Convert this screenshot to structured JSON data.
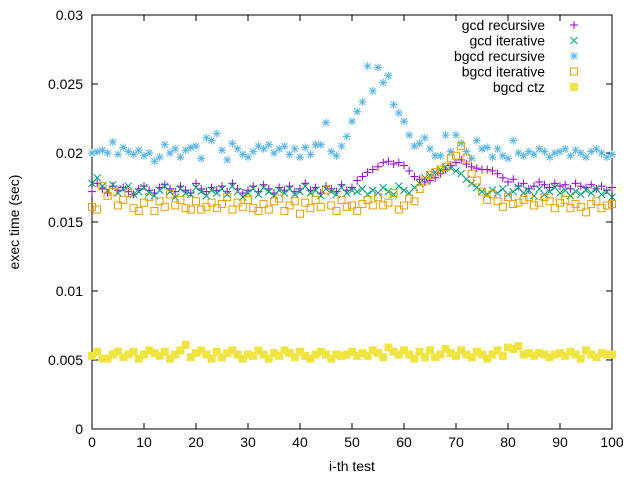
{
  "chart_data": {
    "type": "scatter",
    "title": "",
    "xlabel": "i-th test",
    "ylabel": "exec time (sec)",
    "xlim": [
      0,
      100
    ],
    "ylim": [
      0,
      0.03
    ],
    "x_ticks": [
      0,
      10,
      20,
      30,
      40,
      50,
      60,
      70,
      80,
      90,
      100
    ],
    "x_tick_labels": [
      "0",
      "10",
      "20",
      "30",
      "40",
      "50",
      "60",
      "70",
      "80",
      "90",
      "100"
    ],
    "y_ticks": [
      0,
      0.005,
      0.01,
      0.015,
      0.02,
      0.025,
      0.03
    ],
    "y_tick_labels": [
      "0",
      "0.005",
      "0.01",
      "0.015",
      "0.02",
      "0.025",
      "0.03"
    ],
    "legend_position": "top-right",
    "x": [
      0,
      1,
      2,
      3,
      4,
      5,
      6,
      7,
      8,
      9,
      10,
      11,
      12,
      13,
      14,
      15,
      16,
      17,
      18,
      19,
      20,
      21,
      22,
      23,
      24,
      25,
      26,
      27,
      28,
      29,
      30,
      31,
      32,
      33,
      34,
      35,
      36,
      37,
      38,
      39,
      40,
      41,
      42,
      43,
      44,
      45,
      46,
      47,
      48,
      49,
      50,
      51,
      52,
      53,
      54,
      55,
      56,
      57,
      58,
      59,
      60,
      61,
      62,
      63,
      64,
      65,
      66,
      67,
      68,
      69,
      70,
      71,
      72,
      73,
      74,
      75,
      76,
      77,
      78,
      79,
      80,
      81,
      82,
      83,
      84,
      85,
      86,
      87,
      88,
      89,
      90,
      91,
      92,
      93,
      94,
      95,
      96,
      97,
      98,
      99,
      100
    ],
    "series": [
      {
        "name": "gcd recursive",
        "marker": "plus",
        "color": "#9400d3",
        "values": [
          0.0172,
          0.0178,
          0.0174,
          0.0171,
          0.0176,
          0.0173,
          0.0175,
          0.0172,
          0.017,
          0.0174,
          0.0176,
          0.0173,
          0.0171,
          0.0175,
          0.0177,
          0.0174,
          0.0172,
          0.0176,
          0.0173,
          0.0171,
          0.0178,
          0.0174,
          0.0172,
          0.0175,
          0.0173,
          0.0176,
          0.0172,
          0.0178,
          0.0174,
          0.0171,
          0.0173,
          0.0176,
          0.0172,
          0.0177,
          0.0174,
          0.0171,
          0.0175,
          0.0173,
          0.0176,
          0.0172,
          0.0174,
          0.0178,
          0.0173,
          0.0175,
          0.0171,
          0.0176,
          0.0174,
          0.0172,
          0.0177,
          0.0173,
          0.0175,
          0.018,
          0.0183,
          0.0186,
          0.0188,
          0.019,
          0.0193,
          0.0194,
          0.0192,
          0.0193,
          0.0191,
          0.0187,
          0.0183,
          0.0181,
          0.0179,
          0.018,
          0.0182,
          0.0185,
          0.0188,
          0.0191,
          0.0193,
          0.0195,
          0.0192,
          0.019,
          0.0189,
          0.0188,
          0.0188,
          0.0187,
          0.0185,
          0.0182,
          0.0179,
          0.0181,
          0.0176,
          0.0178,
          0.0174,
          0.0176,
          0.0179,
          0.0177,
          0.0175,
          0.0178,
          0.0176,
          0.0177,
          0.0174,
          0.0178,
          0.0176,
          0.0175,
          0.0177,
          0.0174,
          0.0176,
          0.0173,
          0.0175
        ]
      },
      {
        "name": "gcd iterative",
        "marker": "cross",
        "color": "#009e73",
        "values": [
          0.0178,
          0.0182,
          0.0176,
          0.0173,
          0.0177,
          0.0171,
          0.0174,
          0.0176,
          0.017,
          0.0172,
          0.0175,
          0.0171,
          0.0169,
          0.0173,
          0.0176,
          0.0172,
          0.0168,
          0.0174,
          0.0171,
          0.017,
          0.0175,
          0.0172,
          0.0169,
          0.0173,
          0.0171,
          0.0174,
          0.017,
          0.0176,
          0.0172,
          0.0168,
          0.0171,
          0.0174,
          0.017,
          0.0175,
          0.0172,
          0.0169,
          0.0173,
          0.0171,
          0.0174,
          0.017,
          0.0172,
          0.0176,
          0.0171,
          0.0173,
          0.0169,
          0.0174,
          0.0172,
          0.017,
          0.0175,
          0.0171,
          0.0173,
          0.0172,
          0.0174,
          0.017,
          0.0173,
          0.0171,
          0.0175,
          0.0172,
          0.017,
          0.0176,
          0.0173,
          0.0171,
          0.0175,
          0.0178,
          0.0182,
          0.0184,
          0.0186,
          0.0188,
          0.019,
          0.0189,
          0.0187,
          0.0185,
          0.0181,
          0.0178,
          0.0175,
          0.0172,
          0.017,
          0.0173,
          0.0171,
          0.0174,
          0.017,
          0.0172,
          0.0175,
          0.0171,
          0.0173,
          0.0169,
          0.0174,
          0.017,
          0.0172,
          0.0175,
          0.0171,
          0.0173,
          0.0169,
          0.0172,
          0.017,
          0.0173,
          0.0171,
          0.0174,
          0.017,
          0.0172,
          0.0168
        ]
      },
      {
        "name": "bgcd recursive",
        "marker": "star",
        "color": "#56b4e9",
        "values": [
          0.02,
          0.0201,
          0.0202,
          0.02,
          0.0208,
          0.0199,
          0.0204,
          0.0201,
          0.0199,
          0.0202,
          0.0198,
          0.02,
          0.0194,
          0.0197,
          0.0206,
          0.02,
          0.0203,
          0.0197,
          0.0202,
          0.0204,
          0.0205,
          0.0196,
          0.0211,
          0.0209,
          0.0214,
          0.0202,
          0.0195,
          0.0207,
          0.0203,
          0.0199,
          0.0197,
          0.0201,
          0.0205,
          0.0203,
          0.0206,
          0.02,
          0.0203,
          0.0205,
          0.0199,
          0.0203,
          0.0197,
          0.0204,
          0.0199,
          0.0206,
          0.0206,
          0.0222,
          0.0201,
          0.0198,
          0.0205,
          0.0212,
          0.0223,
          0.023,
          0.0237,
          0.0263,
          0.0245,
          0.0262,
          0.0251,
          0.0256,
          0.0235,
          0.0229,
          0.0223,
          0.0213,
          0.0205,
          0.0207,
          0.0211,
          0.0203,
          0.0198,
          0.0198,
          0.0213,
          0.0201,
          0.0213,
          0.0207,
          0.0201,
          0.0196,
          0.0209,
          0.0203,
          0.0204,
          0.0197,
          0.0203,
          0.0198,
          0.0196,
          0.0209,
          0.02,
          0.0198,
          0.0201,
          0.0199,
          0.0203,
          0.0201,
          0.0197,
          0.02,
          0.0201,
          0.0203,
          0.0198,
          0.0202,
          0.02,
          0.0197,
          0.0201,
          0.0203,
          0.02,
          0.0197,
          0.0199
        ]
      },
      {
        "name": "bgcd iterative",
        "marker": "open-square",
        "color": "#e69f00",
        "values": [
          0.0161,
          0.0159,
          0.0176,
          0.0169,
          0.0172,
          0.0162,
          0.0166,
          0.0171,
          0.016,
          0.0158,
          0.0164,
          0.0168,
          0.0158,
          0.0165,
          0.0161,
          0.017,
          0.0162,
          0.0166,
          0.016,
          0.0159,
          0.0165,
          0.0159,
          0.0161,
          0.0164,
          0.016,
          0.0163,
          0.0168,
          0.0159,
          0.0164,
          0.0161,
          0.0166,
          0.016,
          0.0158,
          0.0163,
          0.0159,
          0.0165,
          0.0167,
          0.0158,
          0.0162,
          0.0165,
          0.0156,
          0.0164,
          0.016,
          0.0166,
          0.0161,
          0.0173,
          0.0162,
          0.0158,
          0.0166,
          0.0161,
          0.0162,
          0.0158,
          0.0163,
          0.0166,
          0.0162,
          0.0168,
          0.0162,
          0.0164,
          0.0171,
          0.0159,
          0.0162,
          0.0167,
          0.0165,
          0.0174,
          0.018,
          0.0184,
          0.0186,
          0.0188,
          0.019,
          0.0196,
          0.0198,
          0.0205,
          0.0196,
          0.0185,
          0.018,
          0.0172,
          0.0166,
          0.017,
          0.0165,
          0.0161,
          0.0168,
          0.0163,
          0.0164,
          0.0166,
          0.0168,
          0.0162,
          0.0164,
          0.0168,
          0.0165,
          0.016,
          0.0164,
          0.0166,
          0.016,
          0.0163,
          0.0161,
          0.0157,
          0.0163,
          0.0165,
          0.016,
          0.0162,
          0.0163
        ]
      },
      {
        "name": "bgcd ctz",
        "marker": "filled-square",
        "color": "#f0e442",
        "values": [
          0.0053,
          0.0056,
          0.0051,
          0.0051,
          0.0054,
          0.0056,
          0.0052,
          0.0054,
          0.0056,
          0.0051,
          0.0054,
          0.0057,
          0.0055,
          0.0053,
          0.0056,
          0.0051,
          0.0054,
          0.0057,
          0.0061,
          0.0052,
          0.0055,
          0.0057,
          0.0054,
          0.0051,
          0.0056,
          0.0052,
          0.0055,
          0.0057,
          0.0054,
          0.0051,
          0.0054,
          0.0053,
          0.0057,
          0.0054,
          0.0051,
          0.0055,
          0.0053,
          0.0057,
          0.0055,
          0.0052,
          0.0056,
          0.0053,
          0.0051,
          0.0054,
          0.0056,
          0.0054,
          0.0051,
          0.0054,
          0.0053,
          0.0054,
          0.0056,
          0.0053,
          0.0055,
          0.0053,
          0.0057,
          0.0055,
          0.0052,
          0.0059,
          0.0056,
          0.0054,
          0.0057,
          0.0054,
          0.0051,
          0.0056,
          0.0052,
          0.0057,
          0.0052,
          0.0054,
          0.0058,
          0.0055,
          0.0053,
          0.0057,
          0.0054,
          0.0052,
          0.0056,
          0.0054,
          0.0051,
          0.0054,
          0.0057,
          0.0053,
          0.0059,
          0.0058,
          0.006,
          0.0054,
          0.0055,
          0.0053,
          0.0055,
          0.0054,
          0.0052,
          0.0054,
          0.0055,
          0.0053,
          0.0056,
          0.0054,
          0.0051,
          0.0057,
          0.0054,
          0.0052,
          0.0055,
          0.0054,
          0.0054
        ]
      }
    ]
  }
}
